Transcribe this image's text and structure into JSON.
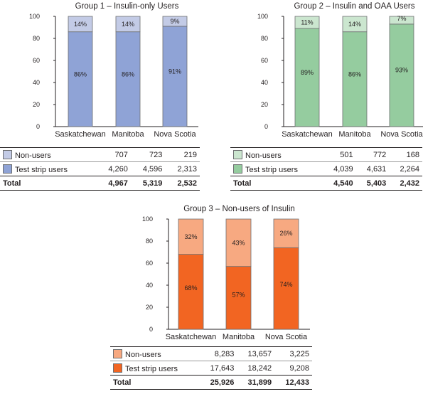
{
  "chart_data": [
    {
      "type": "bar",
      "stacked": true,
      "title": "Group 1 – Insulin-only Users",
      "categories": [
        "Saskatchewan",
        "Manitoba",
        "Nova Scotia"
      ],
      "ylim": [
        0,
        100
      ],
      "yticks": [
        "0",
        "20",
        "40",
        "60",
        "80",
        "100"
      ],
      "series": [
        {
          "name": "Test strip users",
          "values": [
            86,
            86,
            91
          ],
          "labels": [
            "86%",
            "86%",
            "91%"
          ],
          "color": "#8fa3d6"
        },
        {
          "name": "Non-users",
          "values": [
            14,
            14,
            9
          ],
          "labels": [
            "14%",
            "14%",
            "9%"
          ],
          "color": "#c3cbe6"
        }
      ],
      "table": {
        "rows": [
          {
            "label": "Non-users",
            "values": [
              "707",
              "723",
              "219"
            ],
            "color": "#c3cbe6"
          },
          {
            "label": "Test strip users",
            "values": [
              "4,260",
              "4,596",
              "2,313"
            ],
            "color": "#8fa3d6"
          }
        ],
        "total": {
          "label": "Total",
          "values": [
            "4,967",
            "5,319",
            "2,532"
          ]
        }
      }
    },
    {
      "type": "bar",
      "stacked": true,
      "title": "Group 2 – Insulin and OAA Users",
      "categories": [
        "Saskatchewan",
        "Manitoba",
        "Nova Scotia"
      ],
      "ylim": [
        0,
        100
      ],
      "yticks": [
        "0",
        "20",
        "40",
        "60",
        "80",
        "100"
      ],
      "series": [
        {
          "name": "Test strip users",
          "values": [
            89,
            86,
            93
          ],
          "labels": [
            "89%",
            "86%",
            "93%"
          ],
          "color": "#95cc9f"
        },
        {
          "name": "Non-users",
          "values": [
            11,
            14,
            7
          ],
          "labels": [
            "11%",
            "14%",
            "7%"
          ],
          "color": "#cbe6cf"
        }
      ],
      "table": {
        "rows": [
          {
            "label": "Non-users",
            "values": [
              "501",
              "772",
              "168"
            ],
            "color": "#cbe6cf"
          },
          {
            "label": "Test strip users",
            "values": [
              "4,039",
              "4,631",
              "2,264"
            ],
            "color": "#95cc9f"
          }
        ],
        "total": {
          "label": "Total",
          "values": [
            "4,540",
            "5,403",
            "2,432"
          ]
        }
      }
    },
    {
      "type": "bar",
      "stacked": true,
      "title": "Group 3 – Non-users of Insulin",
      "categories": [
        "Saskatchewan",
        "Manitoba",
        "Nova Scotia"
      ],
      "ylim": [
        0,
        100
      ],
      "yticks": [
        "0",
        "20",
        "40",
        "60",
        "80",
        "100"
      ],
      "series": [
        {
          "name": "Test strip users",
          "values": [
            68,
            57,
            74
          ],
          "labels": [
            "68%",
            "57%",
            "74%"
          ],
          "color": "#f26522"
        },
        {
          "name": "Non-users",
          "values": [
            32,
            43,
            26
          ],
          "labels": [
            "32%",
            "43%",
            "26%"
          ],
          "color": "#f7a981"
        }
      ],
      "table": {
        "rows": [
          {
            "label": "Non-users",
            "values": [
              "8,283",
              "13,657",
              "3,225"
            ],
            "color": "#f7a981"
          },
          {
            "label": "Test strip users",
            "values": [
              "17,643",
              "18,242",
              "9,208"
            ],
            "color": "#f26522"
          }
        ],
        "total": {
          "label": "Total",
          "values": [
            "25,926",
            "31,899",
            "12,433"
          ]
        }
      }
    }
  ]
}
